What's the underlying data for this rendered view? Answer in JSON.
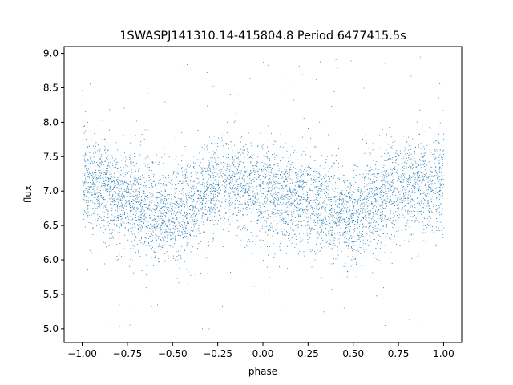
{
  "chart_data": {
    "type": "scatter",
    "title": "1SWASPJ141310.14-415804.8 Period 6477415.5s",
    "xlabel": "phase",
    "ylabel": "flux",
    "xlim": [
      -1.1,
      1.1
    ],
    "ylim": [
      4.8,
      9.1
    ],
    "xticks": [
      -1.0,
      -0.75,
      -0.5,
      -0.25,
      0.0,
      0.25,
      0.5,
      0.75,
      1.0
    ],
    "xtick_labels": [
      "−1.00",
      "−0.75",
      "−0.50",
      "−0.25",
      "0.00",
      "0.25",
      "0.50",
      "0.75",
      "1.00"
    ],
    "yticks": [
      5.0,
      5.5,
      6.0,
      6.5,
      7.0,
      7.5,
      8.0,
      8.5,
      9.0
    ],
    "ytick_labels": [
      "5.0",
      "5.5",
      "6.0",
      "6.5",
      "7.0",
      "7.5",
      "8.0",
      "8.5",
      "9.0"
    ],
    "grid": false,
    "point_color": "#1f77b4",
    "phase_range": [
      -1.0,
      1.0
    ],
    "mean_flux_profile": {
      "phase": [
        -1.0,
        -0.9,
        -0.8,
        -0.7,
        -0.6,
        -0.5,
        -0.4,
        -0.3,
        -0.2,
        -0.1,
        0.0,
        0.1,
        0.2,
        0.3,
        0.4,
        0.5,
        0.6,
        0.7,
        0.8,
        0.9,
        1.0
      ],
      "flux": [
        7.15,
        7.05,
        6.95,
        6.85,
        6.75,
        6.6,
        6.75,
        7.05,
        7.15,
        7.05,
        7.0,
        6.95,
        6.9,
        6.8,
        6.7,
        6.6,
        6.75,
        7.0,
        7.1,
        7.1,
        7.1
      ]
    },
    "flux_scatter_sigma": 0.35
  }
}
